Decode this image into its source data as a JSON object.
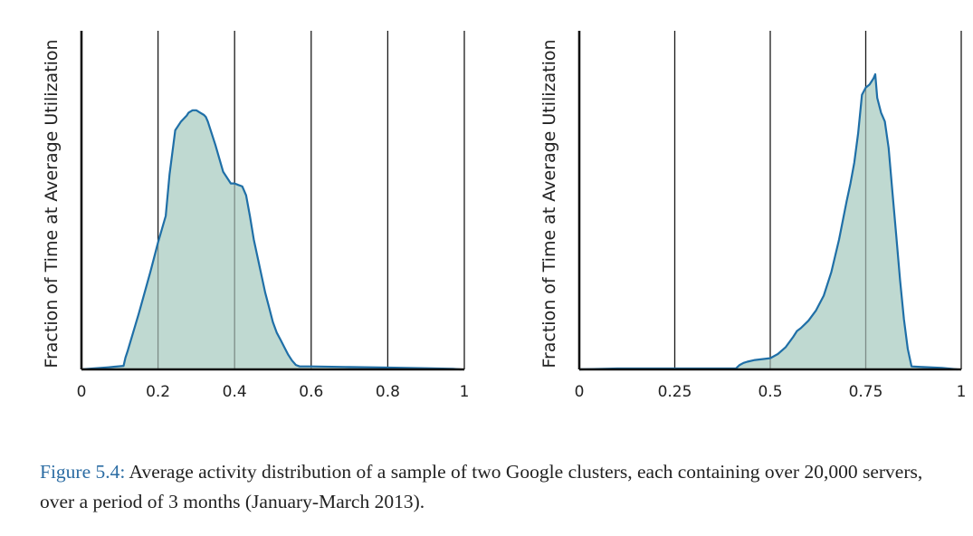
{
  "chart_data": [
    {
      "type": "area",
      "ylabel": "Fraction of Time at Average Utilization",
      "xlabel": "",
      "xlim": [
        0,
        1
      ],
      "ylim": [
        0,
        1
      ],
      "x_ticks": [
        0,
        0.2,
        0.4,
        0.6,
        0.8,
        1
      ],
      "x_tick_labels": [
        "0",
        "0.2",
        "0.4",
        "0.6",
        "0.8",
        "1"
      ],
      "grid": "vertical",
      "fill_color": "#bfd9d1",
      "line_color": "#1f6fa7",
      "series": [
        {
          "x": [
            0,
            0.03,
            0.07,
            0.11,
            0.115,
            0.12,
            0.15,
            0.18,
            0.2,
            0.22,
            0.23,
            0.245,
            0.26,
            0.275,
            0.28,
            0.29,
            0.3,
            0.31,
            0.32,
            0.325,
            0.33,
            0.35,
            0.37,
            0.39,
            0.4,
            0.41,
            0.42,
            0.43,
            0.44,
            0.45,
            0.46,
            0.47,
            0.48,
            0.49,
            0.5,
            0.51,
            0.52,
            0.53,
            0.54,
            0.55,
            0.56,
            0.57,
            0.6,
            0.7,
            0.8,
            0.9,
            0.97,
            0.99
          ],
          "y": [
            0.0,
            0.003,
            0.007,
            0.012,
            0.04,
            0.06,
            0.19,
            0.33,
            0.43,
            0.52,
            0.66,
            0.81,
            0.84,
            0.86,
            0.87,
            0.878,
            0.878,
            0.87,
            0.862,
            0.855,
            0.84,
            0.76,
            0.67,
            0.63,
            0.63,
            0.625,
            0.62,
            0.59,
            0.52,
            0.44,
            0.38,
            0.32,
            0.26,
            0.21,
            0.16,
            0.125,
            0.1,
            0.075,
            0.05,
            0.03,
            0.015,
            0.01,
            0.01,
            0.008,
            0.006,
            0.004,
            0.002,
            0.0
          ]
        }
      ]
    },
    {
      "type": "area",
      "ylabel": "Fraction of Time at Average Utilization",
      "xlabel": "",
      "xlim": [
        0,
        1
      ],
      "ylim": [
        0,
        1
      ],
      "x_ticks": [
        0,
        0.25,
        0.5,
        0.75,
        1
      ],
      "x_tick_labels": [
        "0",
        "0.25",
        "0.5",
        "0.75",
        "1"
      ],
      "grid": "vertical",
      "fill_color": "#bfd9d1",
      "line_color": "#1f6fa7",
      "series": [
        {
          "x": [
            0,
            0.1,
            0.2,
            0.3,
            0.38,
            0.4,
            0.41,
            0.42,
            0.43,
            0.44,
            0.46,
            0.48,
            0.5,
            0.52,
            0.54,
            0.56,
            0.57,
            0.58,
            0.6,
            0.62,
            0.64,
            0.66,
            0.68,
            0.7,
            0.71,
            0.72,
            0.73,
            0.74,
            0.75,
            0.76,
            0.77,
            0.775,
            0.78,
            0.79,
            0.8,
            0.81,
            0.82,
            0.83,
            0.84,
            0.85,
            0.86,
            0.87,
            0.9,
            0.95,
            0.99
          ],
          "y": [
            0.0,
            0.003,
            0.003,
            0.003,
            0.003,
            0.003,
            0.003,
            0.015,
            0.022,
            0.026,
            0.032,
            0.035,
            0.038,
            0.052,
            0.075,
            0.11,
            0.13,
            0.14,
            0.165,
            0.2,
            0.25,
            0.33,
            0.44,
            0.57,
            0.63,
            0.7,
            0.8,
            0.93,
            0.955,
            0.965,
            0.985,
            1.0,
            0.92,
            0.87,
            0.84,
            0.75,
            0.6,
            0.45,
            0.3,
            0.17,
            0.07,
            0.01,
            0.008,
            0.005,
            0.0
          ]
        }
      ]
    }
  ],
  "caption": {
    "label": "Figure 5.4:",
    "text": " Average activity distribution of a sample of two Google clusters, each containing over 20,000 servers, over a period of 3 months (January-March 2013)."
  }
}
